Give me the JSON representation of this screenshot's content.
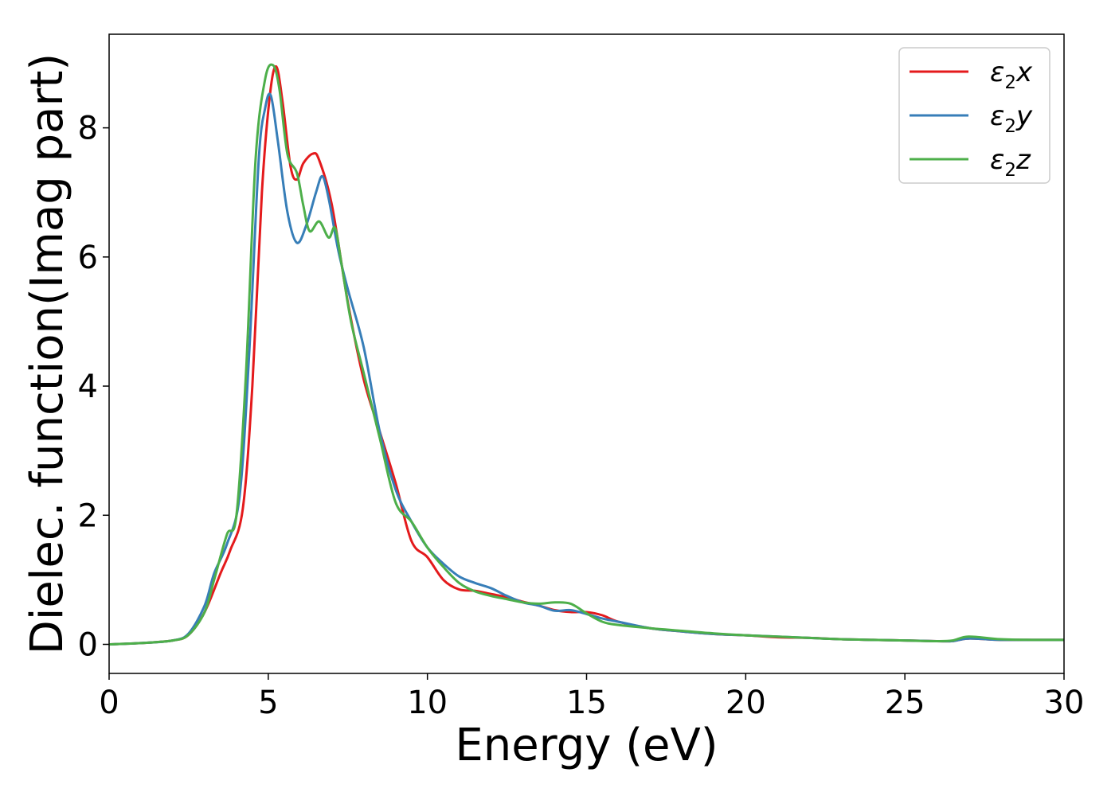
{
  "chart_data": {
    "type": "line",
    "title": "",
    "xlabel": "Energy (eV)",
    "ylabel": "Dielec. function(Imag part)",
    "xlim": [
      0,
      30
    ],
    "ylim": [
      -0.45,
      9.45
    ],
    "xticks": [
      0,
      5,
      10,
      15,
      20,
      25,
      30
    ],
    "xtick_labels": [
      "0",
      "5",
      "10",
      "15",
      "20",
      "25",
      "30"
    ],
    "yticks": [
      0,
      2,
      4,
      6,
      8
    ],
    "ytick_labels": [
      "0",
      "2",
      "4",
      "6",
      "8"
    ],
    "grid": false,
    "legend_position": "top-right",
    "series": [
      {
        "name": "ε₂x",
        "legend_base": "ε",
        "legend_sub": "2",
        "legend_axis": "x",
        "color": "#e41a1c",
        "points": [
          [
            0,
            0
          ],
          [
            1,
            0.02
          ],
          [
            2,
            0.06
          ],
          [
            2.5,
            0.15
          ],
          [
            3,
            0.5
          ],
          [
            3.5,
            1.1
          ],
          [
            3.8,
            1.45
          ],
          [
            4.2,
            2.1
          ],
          [
            4.5,
            4.0
          ],
          [
            4.8,
            7.0
          ],
          [
            5.05,
            8.5
          ],
          [
            5.25,
            8.95
          ],
          [
            5.45,
            8.4
          ],
          [
            5.7,
            7.4
          ],
          [
            5.9,
            7.2
          ],
          [
            6.1,
            7.45
          ],
          [
            6.4,
            7.6
          ],
          [
            6.6,
            7.5
          ],
          [
            7.0,
            6.8
          ],
          [
            7.5,
            5.3
          ],
          [
            8.0,
            4.1
          ],
          [
            8.5,
            3.3
          ],
          [
            9.0,
            2.5
          ],
          [
            9.5,
            1.6
          ],
          [
            10.0,
            1.35
          ],
          [
            10.5,
            1.0
          ],
          [
            11.0,
            0.85
          ],
          [
            11.5,
            0.83
          ],
          [
            12.0,
            0.78
          ],
          [
            12.5,
            0.73
          ],
          [
            13.0,
            0.66
          ],
          [
            13.5,
            0.6
          ],
          [
            14.0,
            0.53
          ],
          [
            14.5,
            0.5
          ],
          [
            15.0,
            0.5
          ],
          [
            15.5,
            0.45
          ],
          [
            16.0,
            0.35
          ],
          [
            17.0,
            0.25
          ],
          [
            18.0,
            0.2
          ],
          [
            19.0,
            0.16
          ],
          [
            20.0,
            0.14
          ],
          [
            21.0,
            0.11
          ],
          [
            22.0,
            0.1
          ],
          [
            23.0,
            0.08
          ],
          [
            24.0,
            0.07
          ],
          [
            25.0,
            0.06
          ],
          [
            26.0,
            0.05
          ],
          [
            26.5,
            0.05
          ],
          [
            27.0,
            0.09
          ],
          [
            28.0,
            0.07
          ],
          [
            29.0,
            0.07
          ],
          [
            30.0,
            0.07
          ]
        ]
      },
      {
        "name": "ε₂y",
        "legend_base": "ε",
        "legend_sub": "2",
        "legend_axis": "y",
        "color": "#377eb8",
        "points": [
          [
            0,
            0
          ],
          [
            1,
            0.02
          ],
          [
            2,
            0.06
          ],
          [
            2.5,
            0.17
          ],
          [
            3,
            0.6
          ],
          [
            3.3,
            1.1
          ],
          [
            3.7,
            1.55
          ],
          [
            4.1,
            2.3
          ],
          [
            4.4,
            4.5
          ],
          [
            4.7,
            7.5
          ],
          [
            4.9,
            8.3
          ],
          [
            5.08,
            8.5
          ],
          [
            5.3,
            7.8
          ],
          [
            5.6,
            6.7
          ],
          [
            5.9,
            6.22
          ],
          [
            6.2,
            6.5
          ],
          [
            6.5,
            7.0
          ],
          [
            6.7,
            7.25
          ],
          [
            6.9,
            6.9
          ],
          [
            7.2,
            6.1
          ],
          [
            7.5,
            5.5
          ],
          [
            8.0,
            4.6
          ],
          [
            8.5,
            3.3
          ],
          [
            9.0,
            2.4
          ],
          [
            9.5,
            1.9
          ],
          [
            10.0,
            1.5
          ],
          [
            10.5,
            1.25
          ],
          [
            11.0,
            1.05
          ],
          [
            11.5,
            0.95
          ],
          [
            12.0,
            0.87
          ],
          [
            12.5,
            0.75
          ],
          [
            13.0,
            0.65
          ],
          [
            13.5,
            0.6
          ],
          [
            14.0,
            0.52
          ],
          [
            14.5,
            0.53
          ],
          [
            15.0,
            0.47
          ],
          [
            15.5,
            0.4
          ],
          [
            16.0,
            0.35
          ],
          [
            17.0,
            0.25
          ],
          [
            18.0,
            0.2
          ],
          [
            19.0,
            0.16
          ],
          [
            20.0,
            0.14
          ],
          [
            21.0,
            0.12
          ],
          [
            22.0,
            0.1
          ],
          [
            23.0,
            0.08
          ],
          [
            24.0,
            0.07
          ],
          [
            25.0,
            0.06
          ],
          [
            26.0,
            0.05
          ],
          [
            26.5,
            0.05
          ],
          [
            27.0,
            0.09
          ],
          [
            28.0,
            0.07
          ],
          [
            29.0,
            0.07
          ],
          [
            30.0,
            0.07
          ]
        ]
      },
      {
        "name": "ε₂z",
        "legend_base": "ε",
        "legend_sub": "2",
        "legend_axis": "z",
        "color": "#4daf4a",
        "points": [
          [
            0,
            0
          ],
          [
            1,
            0.02
          ],
          [
            2,
            0.06
          ],
          [
            2.5,
            0.15
          ],
          [
            3,
            0.5
          ],
          [
            3.3,
            1.0
          ],
          [
            3.7,
            1.7
          ],
          [
            4.0,
            2.0
          ],
          [
            4.3,
            4.2
          ],
          [
            4.6,
            7.5
          ],
          [
            4.9,
            8.75
          ],
          [
            5.15,
            8.97
          ],
          [
            5.35,
            8.6
          ],
          [
            5.6,
            7.6
          ],
          [
            5.9,
            7.3
          ],
          [
            6.1,
            6.8
          ],
          [
            6.3,
            6.4
          ],
          [
            6.6,
            6.55
          ],
          [
            6.9,
            6.3
          ],
          [
            7.1,
            6.45
          ],
          [
            7.3,
            5.9
          ],
          [
            7.6,
            5.0
          ],
          [
            8.0,
            4.2
          ],
          [
            8.5,
            3.2
          ],
          [
            9.0,
            2.2
          ],
          [
            9.5,
            1.9
          ],
          [
            10.0,
            1.5
          ],
          [
            10.5,
            1.2
          ],
          [
            11.0,
            0.95
          ],
          [
            11.5,
            0.82
          ],
          [
            12.0,
            0.75
          ],
          [
            12.5,
            0.7
          ],
          [
            13.0,
            0.65
          ],
          [
            13.5,
            0.63
          ],
          [
            14.0,
            0.65
          ],
          [
            14.5,
            0.63
          ],
          [
            15.0,
            0.48
          ],
          [
            15.5,
            0.35
          ],
          [
            16.0,
            0.3
          ],
          [
            17.0,
            0.25
          ],
          [
            18.0,
            0.21
          ],
          [
            19.0,
            0.17
          ],
          [
            20.0,
            0.14
          ],
          [
            21.0,
            0.12
          ],
          [
            22.0,
            0.1
          ],
          [
            23.0,
            0.08
          ],
          [
            24.0,
            0.07
          ],
          [
            25.0,
            0.06
          ],
          [
            26.0,
            0.05
          ],
          [
            26.5,
            0.06
          ],
          [
            27.0,
            0.12
          ],
          [
            28.0,
            0.08
          ],
          [
            29.0,
            0.07
          ],
          [
            30.0,
            0.07
          ]
        ]
      }
    ]
  }
}
